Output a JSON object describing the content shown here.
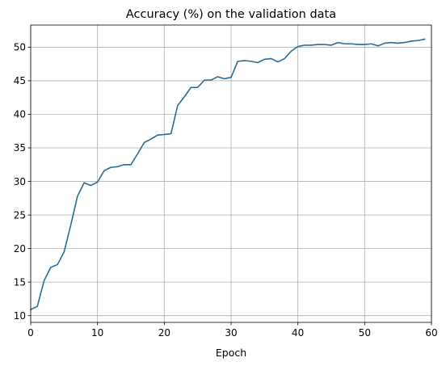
{
  "chart_data": {
    "type": "line",
    "title": "Accuracy (%) on the validation data",
    "xlabel": "Epoch",
    "ylabel": "",
    "xlim": [
      0,
      60
    ],
    "ylim": [
      9,
      53.3
    ],
    "xticks": [
      0,
      10,
      20,
      30,
      40,
      50,
      60
    ],
    "yticks": [
      10,
      15,
      20,
      25,
      30,
      35,
      40,
      45,
      50
    ],
    "grid": true,
    "legend": "none",
    "colors": {
      "line": "#2b6b99",
      "grid": "#b0b0b0",
      "axis": "#000000"
    },
    "series": [
      {
        "x": [
          0,
          1,
          2,
          3,
          4,
          5,
          6,
          7,
          8,
          9,
          10,
          11,
          12,
          13,
          14,
          15,
          16,
          17,
          18,
          19,
          20,
          21,
          22,
          23,
          24,
          25,
          26,
          27,
          28,
          29,
          30,
          31,
          32,
          33,
          34,
          35,
          36,
          37,
          38,
          39,
          40,
          41,
          42,
          43,
          44,
          45,
          46,
          47,
          48,
          49,
          50,
          51,
          52,
          53,
          54,
          55,
          56,
          57,
          58,
          59
        ],
        "y": [
          10.9,
          11.4,
          15.2,
          17.2,
          17.6,
          19.5,
          23.5,
          27.8,
          29.8,
          29.4,
          29.9,
          31.6,
          32.1,
          32.2,
          32.5,
          32.5,
          34.1,
          35.8,
          36.3,
          36.9,
          37.0,
          37.1,
          41.3,
          42.6,
          44.0,
          44.0,
          45.1,
          45.1,
          45.6,
          45.3,
          45.5,
          47.9,
          48.0,
          47.9,
          47.7,
          48.2,
          48.3,
          47.8,
          48.3,
          49.4,
          50.1,
          50.3,
          50.3,
          50.4,
          50.4,
          50.3,
          50.7,
          50.5,
          50.5,
          50.4,
          50.4,
          50.5,
          50.2,
          50.6,
          50.7,
          50.6,
          50.7,
          50.9,
          51.0,
          51.2
        ]
      }
    ]
  }
}
